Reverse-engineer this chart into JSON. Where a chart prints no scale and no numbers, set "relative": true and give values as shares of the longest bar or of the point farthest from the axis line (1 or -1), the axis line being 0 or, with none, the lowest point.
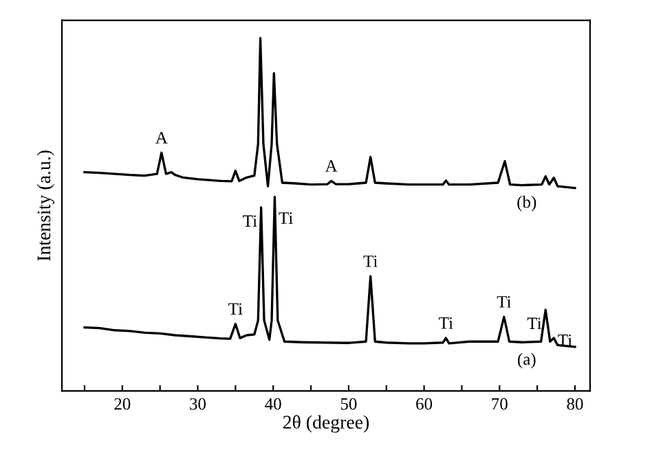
{
  "chart_data": {
    "type": "line",
    "relative": true,
    "xlabel": "2θ (degree)",
    "ylabel": "Intensity (a.u.)",
    "xlim": [
      12,
      82
    ],
    "xticks": [
      {
        "value": 15,
        "label": null
      },
      20,
      {
        "value": 25,
        "label": null
      },
      30,
      {
        "value": 35,
        "label": null
      },
      40,
      {
        "value": 45,
        "label": null
      },
      50,
      {
        "value": 55,
        "label": null
      },
      60,
      {
        "value": 65,
        "label": null
      },
      70,
      {
        "value": 75,
        "label": null
      },
      80
    ],
    "tick_labels": "x",
    "grid": false,
    "legend": false,
    "marker": "none",
    "line_style": "solid",
    "series": [
      {
        "name": "(b)",
        "color": "#000000",
        "x": [
          15,
          17,
          19,
          21,
          23,
          24.6,
          25.2,
          25.8,
          26.5,
          27,
          28,
          30,
          33,
          34.5,
          35.0,
          35.5,
          36.5,
          37.5,
          38.0,
          38.3,
          38.7,
          39.3,
          39.8,
          40.1,
          40.5,
          41.2,
          43,
          45,
          47.2,
          47.7,
          48.3,
          50,
          52.3,
          52.9,
          53.5,
          55,
          58,
          62.5,
          62.9,
          63.3,
          66,
          69.8,
          70.7,
          71.4,
          73,
          75.6,
          76.1,
          76.6,
          77.2,
          77.7,
          80
        ],
        "values": [
          0.62,
          0.618,
          0.615,
          0.612,
          0.61,
          0.615,
          0.675,
          0.615,
          0.62,
          0.612,
          0.605,
          0.6,
          0.595,
          0.594,
          0.624,
          0.595,
          0.605,
          0.61,
          0.7,
          1.0,
          0.7,
          0.58,
          0.7,
          0.9,
          0.7,
          0.59,
          0.588,
          0.585,
          0.586,
          0.595,
          0.586,
          0.586,
          0.59,
          0.663,
          0.59,
          0.588,
          0.585,
          0.585,
          0.596,
          0.585,
          0.585,
          0.59,
          0.651,
          0.585,
          0.583,
          0.585,
          0.608,
          0.585,
          0.604,
          0.58,
          0.575
        ]
      },
      {
        "name": "(a)",
        "color": "#000000",
        "x": [
          15,
          17,
          19,
          21,
          23,
          25,
          27,
          29,
          31,
          33,
          34.3,
          35.0,
          35.6,
          36.5,
          37.5,
          38.0,
          38.4,
          38.8,
          39.5,
          39.8,
          40.2,
          40.6,
          41.5,
          44,
          47,
          50,
          52.3,
          52.9,
          53.5,
          55,
          58,
          60,
          62.5,
          62.9,
          63.3,
          66,
          69.8,
          70.6,
          71.3,
          73,
          75.5,
          76.1,
          76.7,
          77.2,
          77.7,
          80
        ],
        "values": [
          0.18,
          0.178,
          0.172,
          0.17,
          0.165,
          0.163,
          0.158,
          0.155,
          0.152,
          0.149,
          0.148,
          0.19,
          0.15,
          0.158,
          0.16,
          0.2,
          0.52,
          0.2,
          0.145,
          0.2,
          0.55,
          0.2,
          0.14,
          0.138,
          0.137,
          0.136,
          0.14,
          0.325,
          0.14,
          0.137,
          0.135,
          0.135,
          0.137,
          0.15,
          0.135,
          0.14,
          0.14,
          0.21,
          0.14,
          0.138,
          0.14,
          0.23,
          0.14,
          0.15,
          0.13,
          0.125
        ]
      }
    ],
    "annotations": [
      {
        "text": "A",
        "x": 25.2,
        "y": 0.675
      },
      {
        "text": "A",
        "x": 47.7,
        "y": 0.595
      },
      {
        "text": "Ti",
        "x": 35.0,
        "y": 0.19
      },
      {
        "text": "Ti",
        "x": 38.4,
        "y": 0.52
      },
      {
        "text": "Ti",
        "x": 40.2,
        "y": 0.55
      },
      {
        "text": "Ti",
        "x": 52.9,
        "y": 0.325
      },
      {
        "text": "Ti",
        "x": 62.9,
        "y": 0.15
      },
      {
        "text": "Ti",
        "x": 70.6,
        "y": 0.21
      },
      {
        "text": "Ti",
        "x": 76.1,
        "y": 0.23
      },
      {
        "text": "Ti",
        "x": 77.2,
        "y": 0.15
      }
    ]
  }
}
